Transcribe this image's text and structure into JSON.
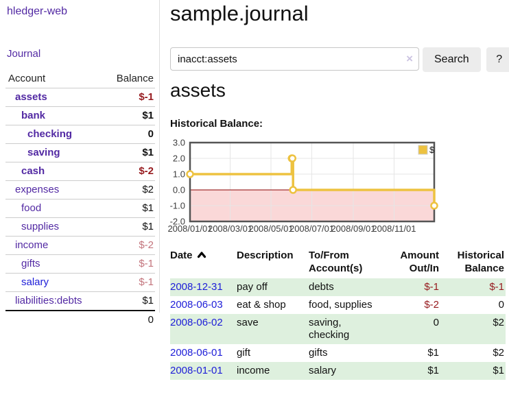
{
  "colors": {
    "link_purple": "#5229a3",
    "link_blue": "#1d1dd8",
    "negative_strong": "#961a1e",
    "negative_soft": "#c3747c",
    "row_highlight_green": "#def0de",
    "chart_gold": "#edc240",
    "chart_negative_fill": "#fad8d8",
    "chart_zero_line": "#8b0000",
    "chart_border": "#545454",
    "chart_grid": "#e6e6e6"
  },
  "sidebar": {
    "brand": "hledger-web",
    "nav_journal": "Journal",
    "accounts_table": {
      "headers": [
        "Account",
        "Balance"
      ],
      "rows": [
        {
          "account": "assets",
          "balance": "$-1",
          "indent": 1,
          "bold": true,
          "neg": "strong"
        },
        {
          "account": "bank",
          "balance": "$1",
          "indent": 2,
          "bold": true,
          "neg": null
        },
        {
          "account": "checking",
          "balance": "0",
          "indent": 3,
          "bold": true,
          "neg": null
        },
        {
          "account": "saving",
          "balance": "$1",
          "indent": 3,
          "bold": true,
          "neg": null
        },
        {
          "account": "cash",
          "balance": "$-2",
          "indent": 2,
          "bold": true,
          "neg": "strong"
        },
        {
          "account": "expenses",
          "balance": "$2",
          "indent": 1,
          "bold": false,
          "neg": null
        },
        {
          "account": "food",
          "balance": "$1",
          "indent": 2,
          "bold": false,
          "neg": null
        },
        {
          "account": "supplies",
          "balance": "$1",
          "indent": 2,
          "bold": false,
          "neg": null
        },
        {
          "account": "income",
          "balance": "$-2",
          "indent": 1,
          "bold": false,
          "neg": "soft"
        },
        {
          "account": "gifts",
          "balance": "$-1",
          "indent": 2,
          "bold": false,
          "neg": "soft"
        },
        {
          "account": "salary",
          "balance": "$-1",
          "indent": 2,
          "bold": false,
          "neg": "soft",
          "blue_link": true
        },
        {
          "account": "liabilities:debts",
          "balance": "$1",
          "indent": 1,
          "bold": false,
          "neg": null,
          "last": true
        }
      ],
      "total": "0"
    }
  },
  "main": {
    "title": "sample.journal",
    "search": {
      "value": "inacct:assets",
      "clear_icon": "×",
      "search_button": "Search",
      "help_button": "?"
    },
    "account_heading": "assets",
    "section_label": "Historical Balance:"
  },
  "chart_data": {
    "type": "line",
    "step": true,
    "title": "Historical Balance:",
    "x_start": "2008-01-01",
    "x_end": "2008-12-31",
    "x_ticks": [
      "2008/01/01",
      "2008/03/01",
      "2008/05/01",
      "2008/07/01",
      "2008/09/01",
      "2008/11/01"
    ],
    "y_ticks": [
      "3.0",
      "2.0",
      "1.0",
      "0.0",
      "-1.0",
      "-2.0"
    ],
    "ylim": [
      -2,
      3
    ],
    "grid": true,
    "negative_region_shaded": true,
    "legend": {
      "label": "$",
      "position": "top-right"
    },
    "series": [
      {
        "name": "$",
        "points": [
          {
            "date": "2008-01-01",
            "value": 1
          },
          {
            "date": "2008-06-01",
            "value": 2
          },
          {
            "date": "2008-06-02",
            "value": 2
          },
          {
            "date": "2008-06-03",
            "value": 0
          },
          {
            "date": "2008-12-31",
            "value": -1
          }
        ]
      }
    ]
  },
  "register": {
    "headers": [
      "Date",
      "Description",
      "To/From Account(s)",
      "Amount Out/In",
      "Historical Balance"
    ],
    "rows": [
      {
        "date": "2008-12-31",
        "description": "pay off",
        "accounts": "debts",
        "amount": "$-1",
        "balance": "$-1",
        "highlight": true
      },
      {
        "date": "2008-06-03",
        "description": "eat & shop",
        "accounts": "food, supplies",
        "amount": "$-2",
        "balance": "0",
        "highlight": false
      },
      {
        "date": "2008-06-02",
        "description": "save",
        "accounts": "saving, checking",
        "amount": "0",
        "balance": "$2",
        "highlight": true
      },
      {
        "date": "2008-06-01",
        "description": "gift",
        "accounts": "gifts",
        "amount": "$1",
        "balance": "$2",
        "highlight": false
      },
      {
        "date": "2008-01-01",
        "description": "income",
        "accounts": "salary",
        "amount": "$1",
        "balance": "$1",
        "highlight": true
      }
    ]
  }
}
